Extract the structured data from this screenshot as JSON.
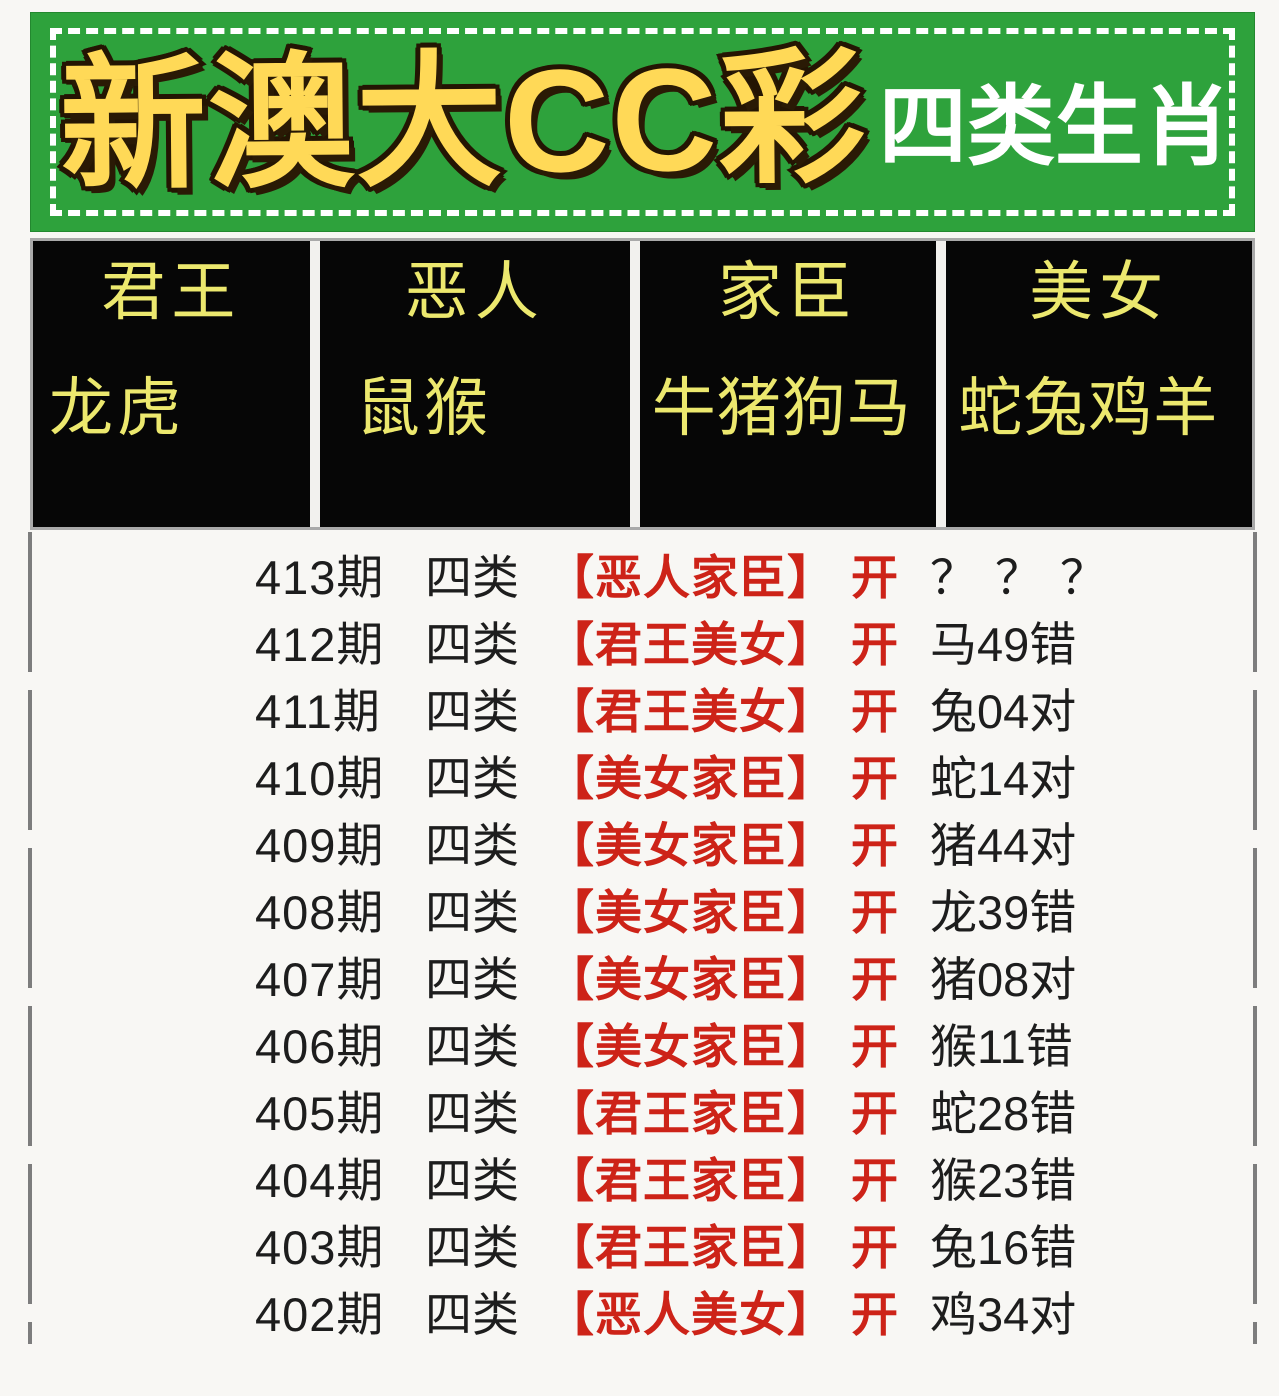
{
  "banner": {
    "title": "新澳大CC彩",
    "subtitle": "四类生肖",
    "bg_color": "#2ea23c",
    "border_color": "#ffffff",
    "title_color": "#ffd957",
    "title_outline_color": "#241503",
    "subtitle_color": "#ffffff"
  },
  "categories": [
    {
      "name": "君王",
      "animals": "龙虎"
    },
    {
      "name": "恶人",
      "animals": "鼠猴"
    },
    {
      "name": "家臣",
      "animals": "牛猪狗马"
    },
    {
      "name": "美女",
      "animals": "蛇兔鸡羊"
    }
  ],
  "category_table": {
    "cell_bg_color": "#060606",
    "text_color": "#ece86e",
    "frame_color": "#a9a9a9"
  },
  "rows": [
    {
      "period": "413期",
      "type": "四类",
      "pick": "【恶人家臣】",
      "open": "开",
      "result": "？？？"
    },
    {
      "period": "412期",
      "type": "四类",
      "pick": "【君王美女】",
      "open": "开",
      "result": "马49错"
    },
    {
      "period": "411期",
      "type": "四类",
      "pick": "【君王美女】",
      "open": "开",
      "result": "兔04对"
    },
    {
      "period": "410期",
      "type": "四类",
      "pick": "【美女家臣】",
      "open": "开",
      "result": "蛇14对"
    },
    {
      "period": "409期",
      "type": "四类",
      "pick": "【美女家臣】",
      "open": "开",
      "result": "猪44对"
    },
    {
      "period": "408期",
      "type": "四类",
      "pick": "【美女家臣】",
      "open": "开",
      "result": "龙39错"
    },
    {
      "period": "407期",
      "type": "四类",
      "pick": "【美女家臣】",
      "open": "开",
      "result": "猪08对"
    },
    {
      "period": "406期",
      "type": "四类",
      "pick": "【美女家臣】",
      "open": "开",
      "result": "猴11错"
    },
    {
      "period": "405期",
      "type": "四类",
      "pick": "【君王家臣】",
      "open": "开",
      "result": "蛇28错"
    },
    {
      "period": "404期",
      "type": "四类",
      "pick": "【君王家臣】",
      "open": "开",
      "result": "猴23错"
    },
    {
      "period": "403期",
      "type": "四类",
      "pick": "【君王家臣】",
      "open": "开",
      "result": "兔16错"
    },
    {
      "period": "402期",
      "type": "四类",
      "pick": "【恶人美女】",
      "open": "开",
      "result": "鸡34对"
    }
  ],
  "colors": {
    "page_bg": "#f8f7f4",
    "row_text": "#1d1d1d",
    "pick_red": "#cd2318",
    "side_line_gray": "#7d7d7d"
  }
}
